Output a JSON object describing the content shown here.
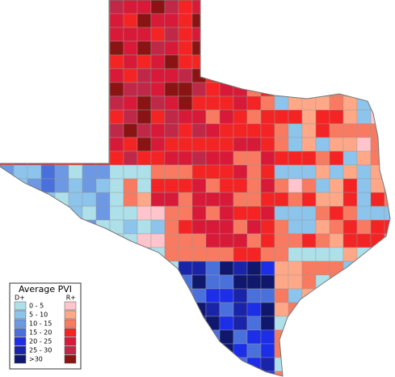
{
  "legend": {
    "title": "Average PVI",
    "left_label": "D+",
    "right_label": "R+",
    "classes": [
      {
        "label": "0  -  5",
        "d_color": "#aee0ea",
        "r_color": "#ffc4cc"
      },
      {
        "label": "5  -  10",
        "d_color": "#8cc4ec",
        "r_color": "#ffa888"
      },
      {
        "label": "10  -  15",
        "d_color": "#6c98e4",
        "r_color": "#f87a60"
      },
      {
        "label": "15  -  20",
        "d_color": "#4a70dc",
        "r_color": "#f42424"
      },
      {
        "label": "20  -  25",
        "d_color": "#1c2ee8",
        "r_color": "#d81a38"
      },
      {
        "label": "25  -  30",
        "d_color": "#1a24a8",
        "r_color": "#c02848"
      },
      {
        "label": ">30",
        "d_color": "#10186e",
        "r_color": "#8a1414"
      }
    ]
  }
}
